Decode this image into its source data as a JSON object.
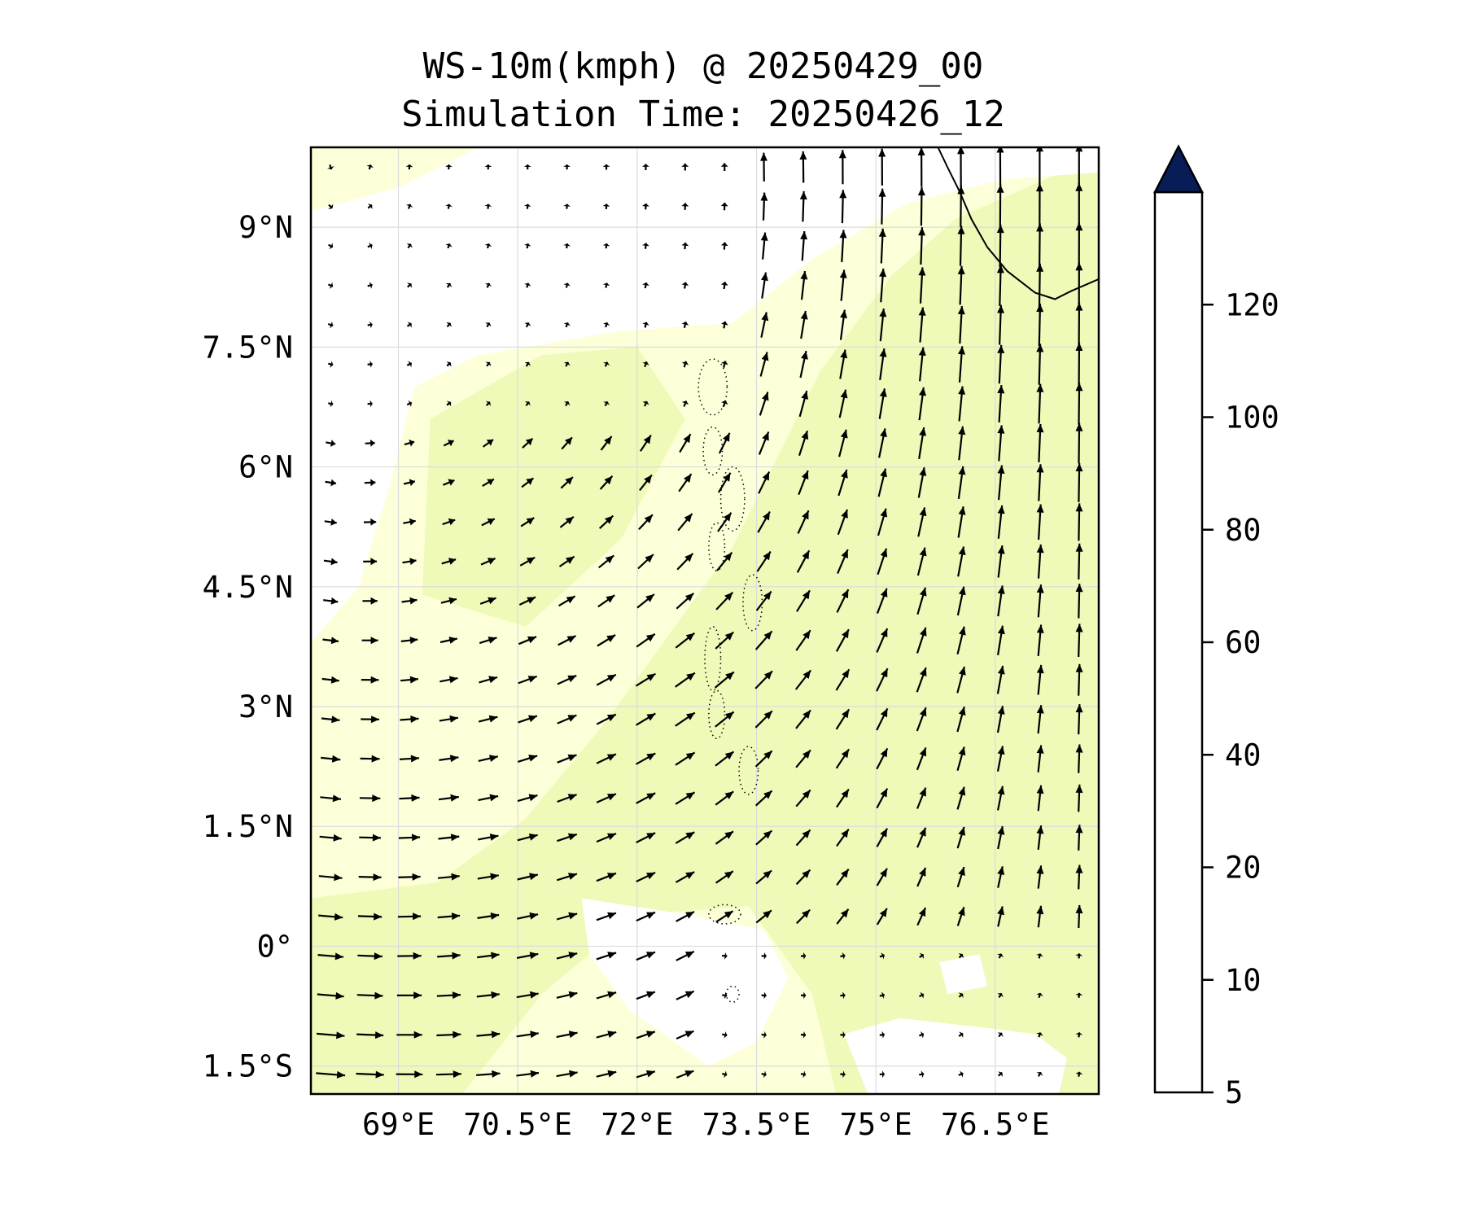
{
  "title": {
    "line1": "WS-10m(kmph) @ 20250429_00",
    "line2": "Simulation Time: 20250426_12"
  },
  "map": {
    "lon_range": [
      67.9,
      77.8
    ],
    "lat_range": [
      -1.85,
      10.0
    ],
    "lon_ticks": [
      {
        "value": 69,
        "label": "69°E"
      },
      {
        "value": 70.5,
        "label": "70.5°E"
      },
      {
        "value": 72,
        "label": "72°E"
      },
      {
        "value": 73.5,
        "label": "73.5°E"
      },
      {
        "value": 75,
        "label": "75°E"
      },
      {
        "value": 76.5,
        "label": "76.5°E"
      }
    ],
    "lat_ticks": [
      {
        "value": 9,
        "label": "9°N"
      },
      {
        "value": 7.5,
        "label": "7.5°N"
      },
      {
        "value": 6,
        "label": "6°N"
      },
      {
        "value": 4.5,
        "label": "4.5°N"
      },
      {
        "value": 3,
        "label": "3°N"
      },
      {
        "value": 1.5,
        "label": "1.5°N"
      },
      {
        "value": 0,
        "label": "0°"
      },
      {
        "value": -1.5,
        "label": "1.5°S"
      }
    ],
    "gridlines": true
  },
  "colorbar": {
    "levels": [
      5,
      10,
      20,
      40,
      60,
      80,
      100,
      120
    ],
    "colors": [
      "#ffffd9",
      "#edf8b1",
      "#c7e9b4",
      "#7fcdbb",
      "#41b6c4",
      "#1d91c0",
      "#225ea8",
      "#0c2c84"
    ],
    "extend_color": "#081d58",
    "extend": "max",
    "tick_labels": [
      "5",
      "10",
      "20",
      "40",
      "60",
      "80",
      "100",
      "120"
    ]
  },
  "colors": {
    "calm": "#ffffff",
    "light": "#fcffd7",
    "moderate": "#eff9b8",
    "arrow": "#000000"
  }
}
